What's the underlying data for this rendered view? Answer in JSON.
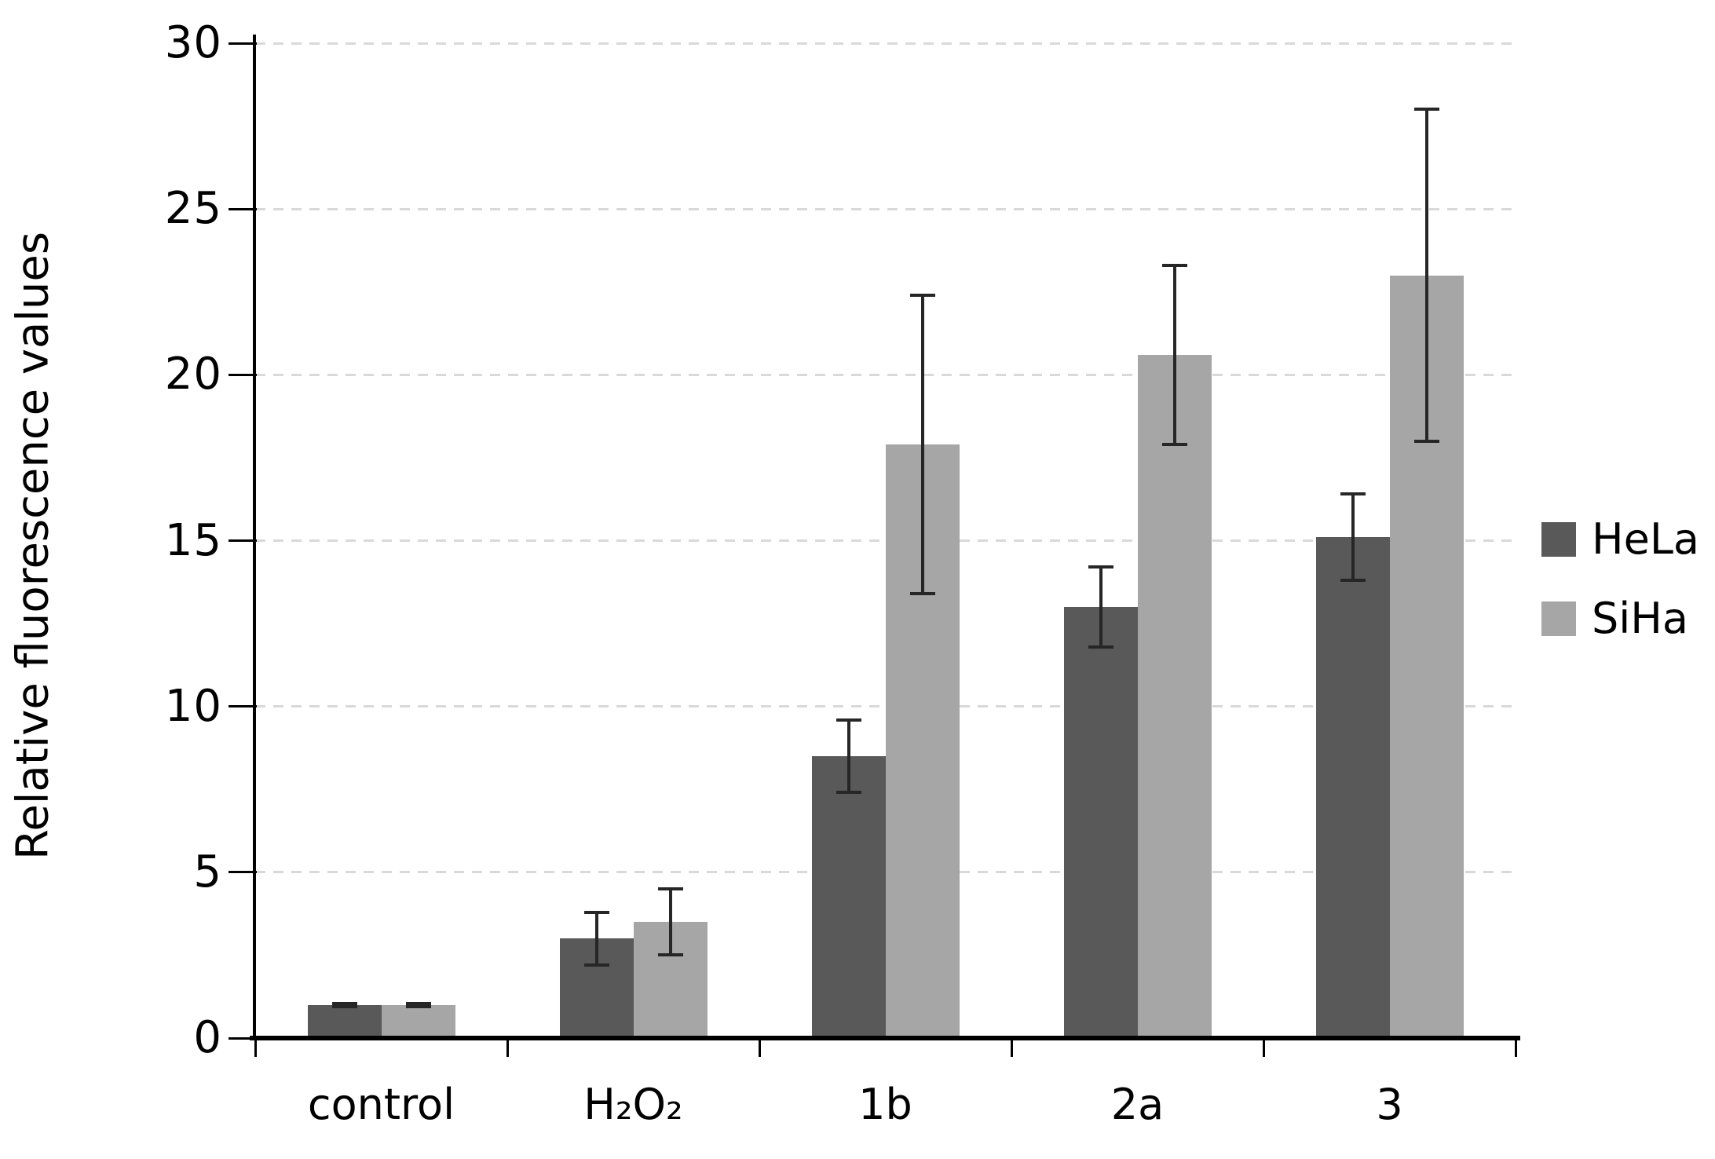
{
  "figure": {
    "background": "#ffffff"
  },
  "chart_data": {
    "type": "bar",
    "title": "",
    "xlabel": "",
    "ylabel": "Relative fluorescence values",
    "categories": [
      "control",
      "H₂O₂",
      "1b",
      "2a",
      "3"
    ],
    "series": [
      {
        "name": "HeLa",
        "color": "#595959",
        "values": [
          1.0,
          3.0,
          8.5,
          13.0,
          15.1
        ],
        "errors": [
          0.05,
          0.8,
          1.1,
          1.2,
          1.3
        ]
      },
      {
        "name": "SiHa",
        "color": "#a6a6a6",
        "values": [
          1.0,
          3.5,
          17.9,
          20.6,
          23.0
        ],
        "errors": [
          0.05,
          1.0,
          4.5,
          2.7,
          5.0
        ]
      }
    ],
    "ylim": [
      0,
      30
    ],
    "yticks": [
      0,
      5,
      10,
      15,
      20,
      25,
      30
    ],
    "grid": {
      "horizontal": true,
      "style": "dashed",
      "color": "#d9d9d9"
    },
    "legend": {
      "position": "right",
      "entries": [
        "HeLa",
        "SiHa"
      ]
    },
    "error_bar_color": "#262626",
    "axis_color": "#000000"
  }
}
